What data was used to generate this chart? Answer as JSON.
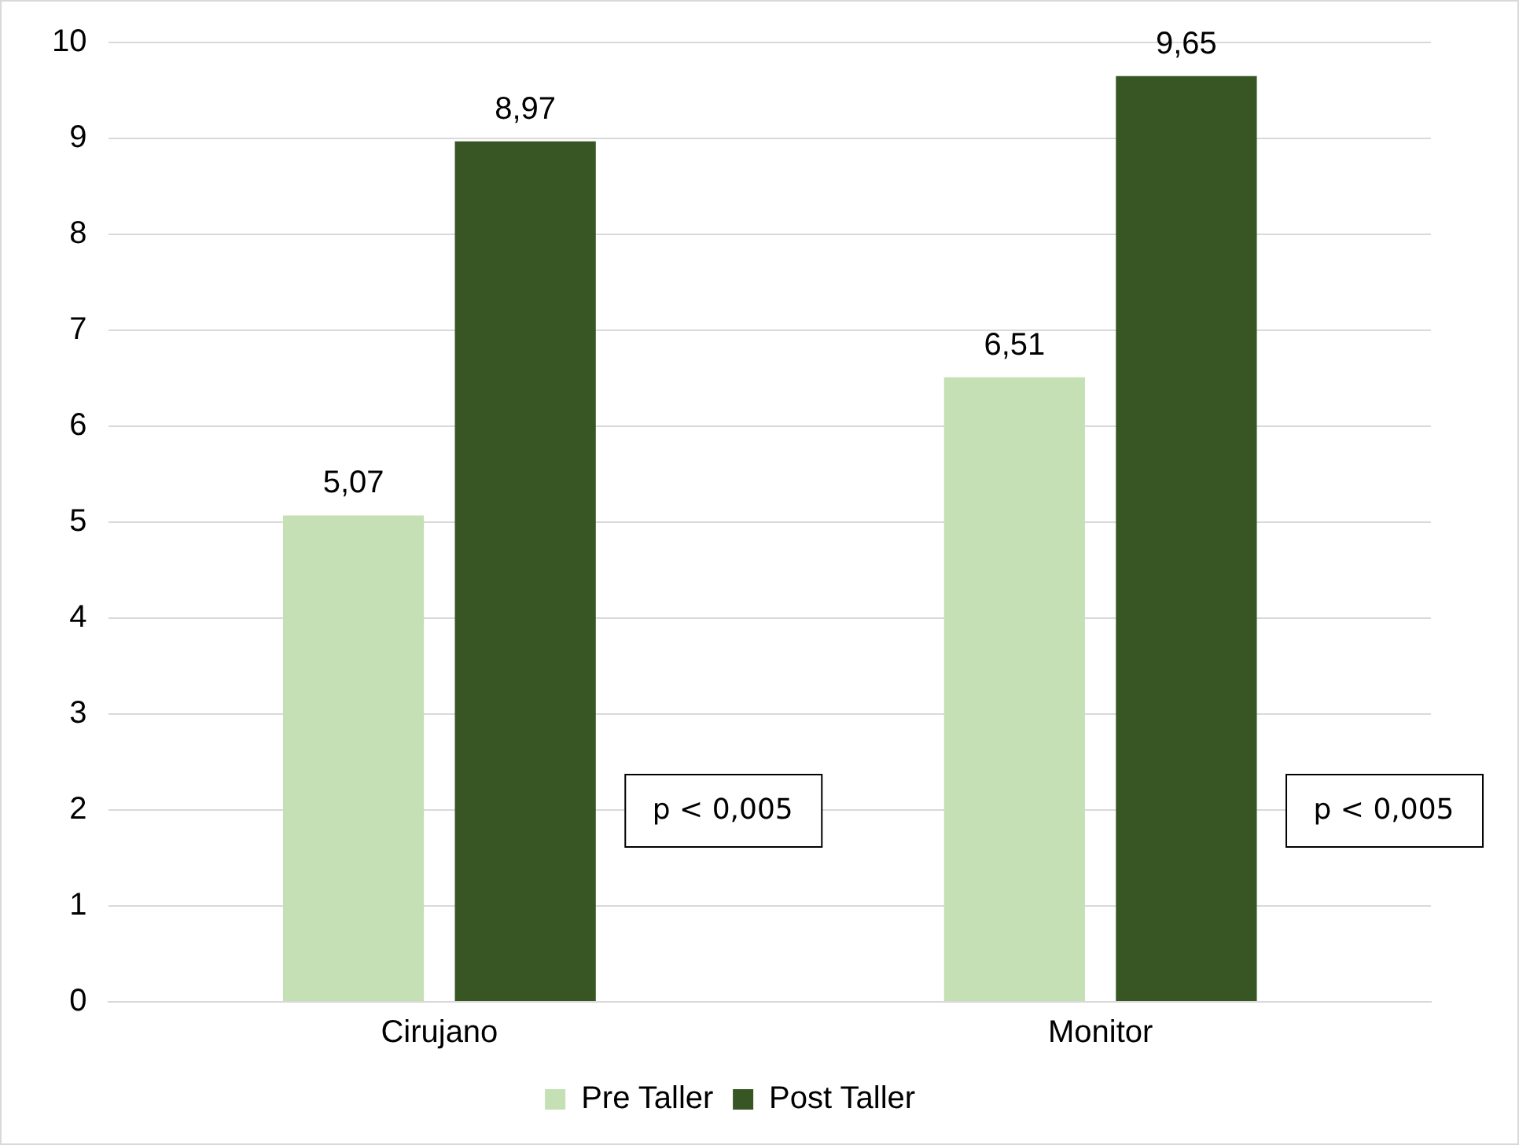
{
  "chart_data": {
    "type": "bar",
    "categories": [
      "Cirujano",
      "Monitor"
    ],
    "series": [
      {
        "name": "Pre Taller",
        "color": "#c5e0b4",
        "values": [
          5.07,
          6.51
        ],
        "value_labels": [
          "5,07",
          "6,51"
        ]
      },
      {
        "name": "Post Taller",
        "color": "#375623",
        "values": [
          8.97,
          9.65
        ],
        "value_labels": [
          "8,97",
          "9,65"
        ]
      }
    ],
    "ylim": [
      0,
      10
    ],
    "yticks": [
      0,
      1,
      2,
      3,
      4,
      5,
      6,
      7,
      8,
      9,
      10
    ],
    "grid": "y",
    "legend": "bottom",
    "annotations": [
      "p < 0,005",
      "p < 0,005"
    ]
  }
}
